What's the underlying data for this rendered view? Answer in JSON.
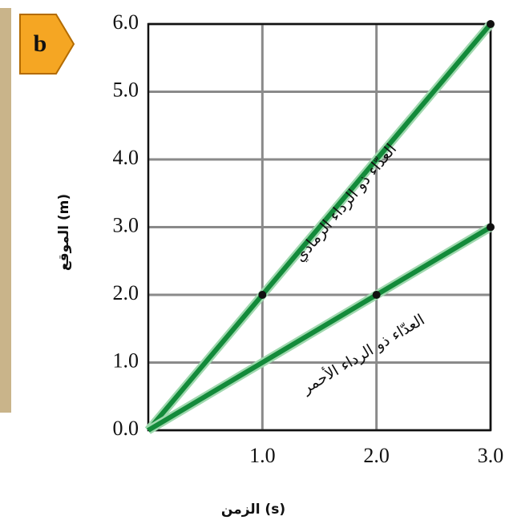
{
  "chart_data": {
    "type": "line",
    "panel_label": "b",
    "x_label": "الزمن (s)",
    "y_label": "الموقع (m)",
    "series": [
      {
        "name": "العدّاء ذو الرداء الرمادي",
        "color": "#138a3a",
        "x": [
          0,
          1,
          3
        ],
        "values": [
          0,
          2,
          6
        ]
      },
      {
        "name": "العدّاء ذو الرداء الأحمر",
        "color": "#138a3a",
        "x": [
          0,
          2,
          3
        ],
        "values": [
          0,
          2,
          3
        ]
      }
    ],
    "xlim": [
      0,
      3
    ],
    "ylim": [
      0,
      6
    ],
    "xticks": [
      {
        "value": 1,
        "label": "1.0"
      },
      {
        "value": 2,
        "label": "2.0"
      },
      {
        "value": 3,
        "label": "3.0"
      }
    ],
    "yticks": [
      {
        "value": 0,
        "label": "0.0"
      },
      {
        "value": 1,
        "label": "1.0"
      },
      {
        "value": 2,
        "label": "2.0"
      },
      {
        "value": 3,
        "label": "3.0"
      },
      {
        "value": 4,
        "label": "4.0"
      },
      {
        "value": 5,
        "label": "5.0"
      },
      {
        "value": 6,
        "label": "6.0"
      }
    ],
    "grid": true
  }
}
